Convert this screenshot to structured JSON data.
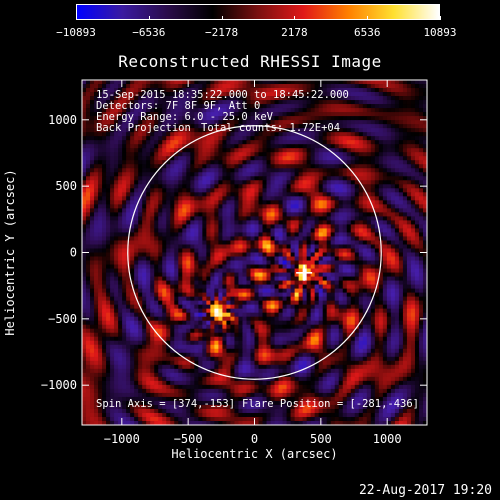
{
  "colorbar": {
    "tick_labels": [
      "−10893",
      "−6536",
      "−2178",
      "2178",
      "6536",
      "10893"
    ],
    "tick_values": [
      -10893,
      -6536,
      -2178,
      2178,
      6536,
      10893
    ],
    "range": [
      -10893,
      10893
    ],
    "colors": [
      "#0000ff",
      "#3a1aa0",
      "#2a0c4a",
      "#000000",
      "#7a1010",
      "#e01818",
      "#ff8000",
      "#ffe030",
      "#ffffff"
    ]
  },
  "annotations": {
    "time_range": "15-Sep-2015 18:35:22.000 to 18:45:22.000",
    "detectors": "Detectors: 7F 8F 9F, Att 0",
    "energy": "Energy Range: 6.0 - 25.0 keV",
    "method": "Back Projection",
    "counts": "Total counts: 1.72E+04",
    "spin_axis": "Spin Axis = [374,-153]",
    "flare_position": "Flare Position = [-281,-436]"
  },
  "footer": {
    "timestamp": "22-Aug-2017 19:20"
  },
  "chart_data": {
    "type": "heatmap",
    "title": "Reconstructed RHESSI Image",
    "xlabel": "Heliocentric X (arcsec)",
    "ylabel": "Heliocentric Y (arcsec)",
    "xlim": [
      -1300,
      1300
    ],
    "ylim": [
      -1300,
      1300
    ],
    "xticks": [
      -1000,
      -500,
      0,
      500,
      1000
    ],
    "yticks": [
      -1000,
      -500,
      0,
      500,
      1000
    ],
    "xtick_labels": [
      "−1000",
      "−500",
      "0",
      "500",
      "1000"
    ],
    "ytick_labels": [
      "−1000",
      "−500",
      "0",
      "500",
      "1000"
    ],
    "solar_limb": {
      "center": [
        0,
        0
      ],
      "radius": 955,
      "color": "#ffffff"
    },
    "sources": [
      {
        "x": 374,
        "y": -153,
        "strength": 1.0
      },
      {
        "x": -281,
        "y": -436,
        "strength": 0.7
      }
    ],
    "marker": {
      "x": 374,
      "y": -153,
      "shape": "plus"
    }
  }
}
